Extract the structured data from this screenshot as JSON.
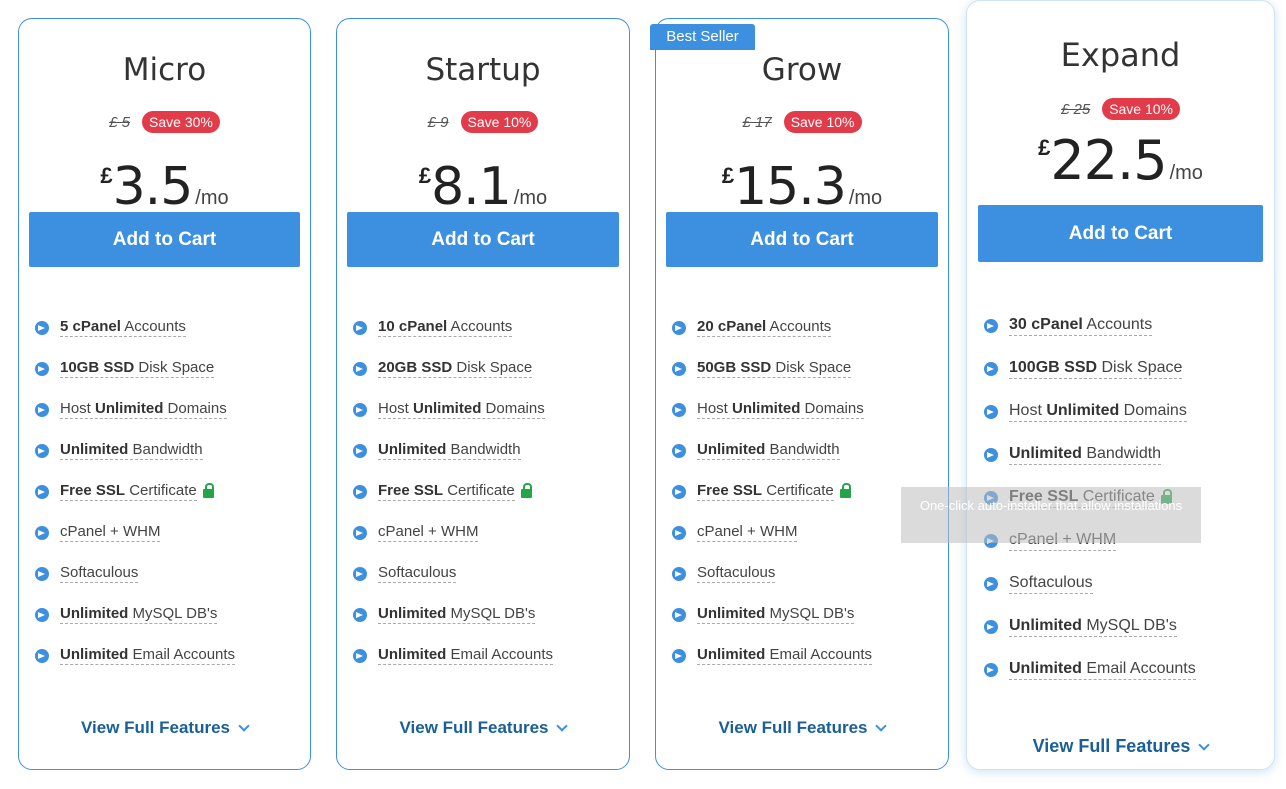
{
  "badge": "Best Seller",
  "tooltip": "One-click auto-installer that allow installations",
  "plans": [
    {
      "name": "Micro",
      "currency": "£",
      "old_price": "£ 5",
      "save": "Save 30%",
      "price": "3.5",
      "period": "/mo",
      "cta": "Add to Cart",
      "features": [
        {
          "bold": "5 cPanel",
          "text": " Accounts",
          "prefix": ""
        },
        {
          "bold": "10GB SSD",
          "text": " Disk Space",
          "prefix": ""
        },
        {
          "prefix": "Host ",
          "bold": "Unlimited",
          "text": " Domains"
        },
        {
          "bold": "Unlimited",
          "text": " Bandwidth",
          "prefix": ""
        },
        {
          "bold": "Free SSL",
          "text": " Certificate",
          "prefix": "",
          "lock": true
        },
        {
          "prefix": "cPanel + WHM",
          "bold": "",
          "text": ""
        },
        {
          "prefix": "Softaculous",
          "bold": "",
          "text": ""
        },
        {
          "bold": "Unlimited",
          "text": " MySQL DB's",
          "prefix": ""
        },
        {
          "bold": "Unlimited",
          "text": " Email Accounts",
          "prefix": ""
        }
      ],
      "link": "View Full Features"
    },
    {
      "name": "Startup",
      "currency": "£",
      "old_price": "£ 9",
      "save": "Save 10%",
      "price": "8.1",
      "period": "/mo",
      "cta": "Add to Cart",
      "features": [
        {
          "bold": "10 cPanel",
          "text": " Accounts",
          "prefix": ""
        },
        {
          "bold": "20GB SSD",
          "text": " Disk Space",
          "prefix": ""
        },
        {
          "prefix": "Host ",
          "bold": "Unlimited",
          "text": " Domains"
        },
        {
          "bold": "Unlimited",
          "text": " Bandwidth",
          "prefix": ""
        },
        {
          "bold": "Free SSL",
          "text": " Certificate",
          "prefix": "",
          "lock": true
        },
        {
          "prefix": "cPanel + WHM",
          "bold": "",
          "text": ""
        },
        {
          "prefix": "Softaculous",
          "bold": "",
          "text": ""
        },
        {
          "bold": "Unlimited",
          "text": " MySQL DB's",
          "prefix": ""
        },
        {
          "bold": "Unlimited",
          "text": " Email Accounts",
          "prefix": ""
        }
      ],
      "link": "View Full Features"
    },
    {
      "name": "Grow",
      "currency": "£",
      "old_price": "£ 17",
      "save": "Save 10%",
      "price": "15.3",
      "period": "/mo",
      "cta": "Add to Cart",
      "features": [
        {
          "bold": "20 cPanel",
          "text": " Accounts",
          "prefix": ""
        },
        {
          "bold": "50GB SSD",
          "text": " Disk Space",
          "prefix": ""
        },
        {
          "prefix": "Host ",
          "bold": "Unlimited",
          "text": " Domains"
        },
        {
          "bold": "Unlimited",
          "text": " Bandwidth",
          "prefix": ""
        },
        {
          "bold": "Free SSL",
          "text": " Certificate",
          "prefix": "",
          "lock": true
        },
        {
          "prefix": "cPanel + WHM",
          "bold": "",
          "text": ""
        },
        {
          "prefix": "Softaculous",
          "bold": "",
          "text": ""
        },
        {
          "bold": "Unlimited",
          "text": " MySQL DB's",
          "prefix": ""
        },
        {
          "bold": "Unlimited",
          "text": " Email Accounts",
          "prefix": ""
        }
      ],
      "link": "View Full Features"
    },
    {
      "name": "Expand",
      "currency": "£",
      "old_price": "£ 25",
      "save": "Save 10%",
      "price": "22.5",
      "period": "/mo",
      "cta": "Add to Cart",
      "features": [
        {
          "bold": "30 cPanel",
          "text": " Accounts",
          "prefix": ""
        },
        {
          "bold": "100GB SSD",
          "text": " Disk Space",
          "prefix": ""
        },
        {
          "prefix": "Host ",
          "bold": "Unlimited",
          "text": " Domains"
        },
        {
          "bold": "Unlimited",
          "text": " Bandwidth",
          "prefix": ""
        },
        {
          "bold": "Free SSL",
          "text": " Certificate",
          "prefix": "",
          "lock": true
        },
        {
          "prefix": "cPanel + WHM",
          "bold": "",
          "text": ""
        },
        {
          "prefix": "Softaculous",
          "bold": "",
          "text": ""
        },
        {
          "bold": "Unlimited",
          "text": " MySQL DB's",
          "prefix": ""
        },
        {
          "bold": "Unlimited",
          "text": " Email Accounts",
          "prefix": ""
        }
      ],
      "link": "View Full Features"
    }
  ]
}
